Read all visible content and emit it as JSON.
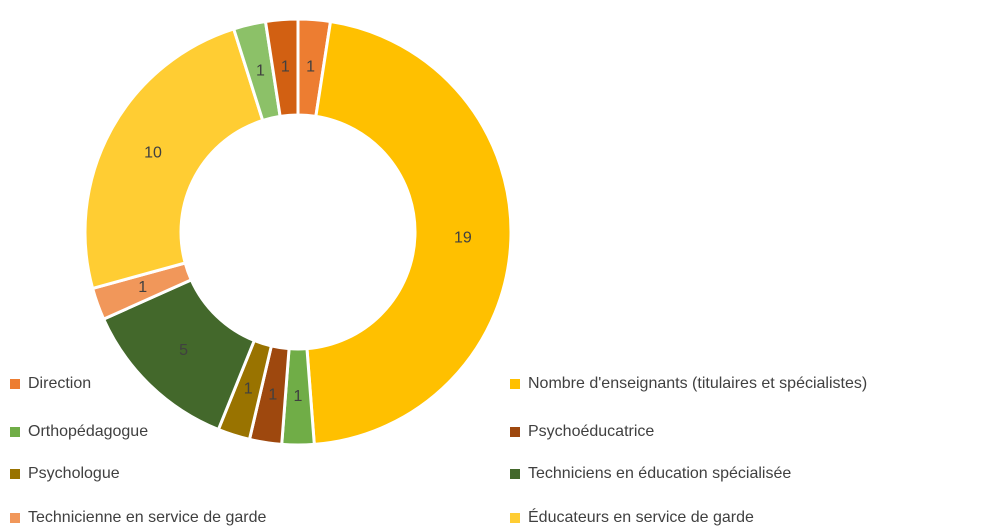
{
  "chart_data": {
    "type": "donut",
    "categories": [
      "Direction",
      "Nombre d'enseignants (titulaires et spécialistes)",
      "Orthopédagogue",
      "Psychoéducatrice",
      "Psychologue",
      "Techniciens en éducation spécialisée",
      "Technicienne en service de garde",
      "Éducateurs en service de garde",
      null,
      null
    ],
    "values": [
      1,
      19,
      1,
      1,
      1,
      5,
      1,
      10,
      1,
      1
    ],
    "colors": [
      "#ED7D31",
      "#FFC000",
      "#70AD47",
      "#9E480E",
      "#997300",
      "#43682B",
      "#F1975A",
      "#FFCD33",
      "#8CC168",
      "#D26012"
    ],
    "legend": "bottom"
  }
}
